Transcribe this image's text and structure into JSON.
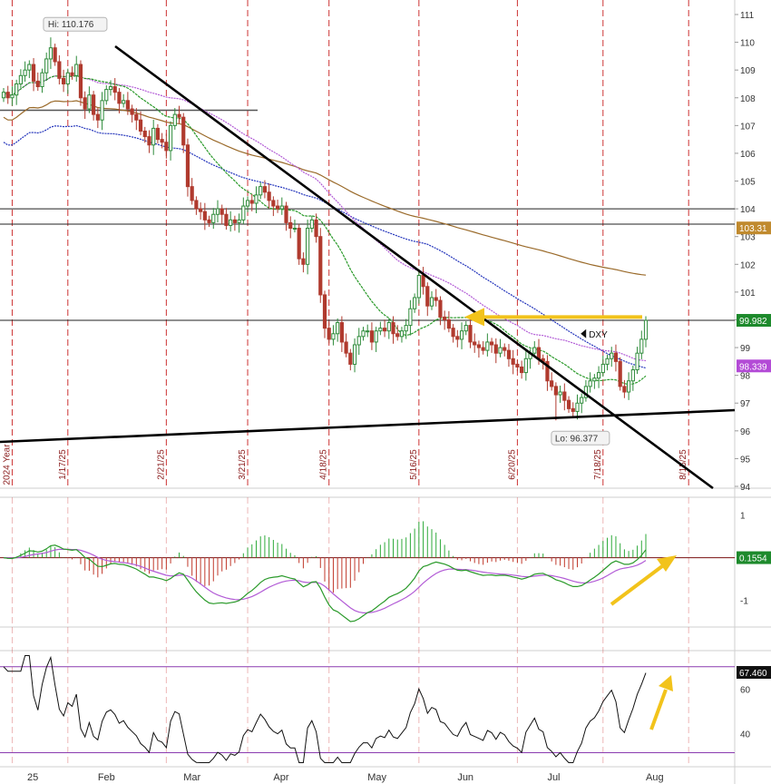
{
  "chart_data": {
    "type": "candlestick",
    "price_axis": {
      "min": 94,
      "max": 111,
      "ticks": [
        111,
        110,
        109,
        108,
        107,
        106,
        105,
        104,
        103,
        102,
        101,
        100,
        99,
        98,
        97,
        96,
        95,
        94
      ]
    },
    "month_labels": [
      {
        "label": "25",
        "day": 0
      },
      {
        "label": "Feb",
        "day": 22
      },
      {
        "label": "Mar",
        "day": 42
      },
      {
        "label": "Apr",
        "day": 63
      },
      {
        "label": "May",
        "day": 85
      },
      {
        "label": "Jun",
        "day": 106
      },
      {
        "label": "Jul",
        "day": 127
      },
      {
        "label": "Aug",
        "day": 150
      }
    ],
    "expiry_labels": [
      {
        "label": "2024 Year",
        "day": 2
      },
      {
        "label": "1/17/25",
        "day": 15
      },
      {
        "label": "2/21/25",
        "day": 38
      },
      {
        "label": "3/21/25",
        "day": 57
      },
      {
        "label": "4/18/25",
        "day": 76
      },
      {
        "label": "5/16/25",
        "day": 97
      },
      {
        "label": "6/20/25",
        "day": 120
      },
      {
        "label": "7/18/25",
        "day": 140
      },
      {
        "label": "8/15/25",
        "day": 160
      }
    ],
    "closes": [
      108.2,
      108.0,
      108.1,
      108.5,
      108.8,
      109.0,
      109.2,
      108.6,
      108.4,
      108.9,
      109.4,
      109.8,
      109.3,
      108.7,
      108.5,
      108.9,
      108.8,
      109.2,
      108.0,
      107.6,
      108.1,
      107.4,
      107.2,
      107.9,
      108.3,
      108.4,
      108.2,
      107.8,
      107.9,
      107.6,
      107.4,
      107.2,
      106.8,
      106.6,
      106.3,
      106.9,
      106.5,
      106.4,
      106.1,
      107.0,
      107.4,
      107.3,
      106.3,
      104.8,
      104.3,
      104.0,
      103.9,
      103.6,
      103.5,
      103.8,
      104.0,
      103.8,
      103.4,
      103.6,
      103.5,
      103.6,
      104.1,
      104.3,
      104.2,
      104.5,
      104.8,
      104.6,
      104.3,
      104.1,
      104.0,
      104.1,
      103.5,
      103.3,
      103.3,
      102.2,
      102.0,
      103.3,
      103.6,
      103.0,
      100.9,
      99.7,
      99.3,
      99.5,
      99.9,
      99.2,
      98.8,
      98.4,
      99.1,
      99.4,
      99.6,
      99.6,
      99.2,
      99.6,
      99.7,
      99.6,
      99.9,
      99.5,
      99.4,
      99.6,
      99.8,
      100.4,
      100.8,
      101.6,
      101.2,
      100.5,
      100.8,
      100.7,
      100.1,
      100.0,
      99.7,
      99.4,
      99.3,
      99.6,
      99.8,
      99.2,
      99.1,
      99.0,
      98.9,
      99.2,
      99.1,
      98.8,
      99.0,
      98.9,
      98.6,
      98.4,
      98.3,
      98.1,
      98.6,
      98.8,
      99.0,
      98.6,
      98.5,
      97.8,
      97.6,
      97.3,
      97.4,
      97.1,
      96.8,
      96.7,
      97.0,
      97.2,
      97.6,
      97.8,
      97.9,
      98.1,
      98.4,
      98.6,
      98.8,
      98.5,
      97.6,
      97.4,
      97.8,
      98.2,
      98.8,
      99.3,
      99.98
    ],
    "events": {
      "high": {
        "day": 11,
        "value": 110.176,
        "label": "Hi: 110.176"
      },
      "low": {
        "day": 129,
        "value": 96.377,
        "label": "Lo: 96.377"
      }
    },
    "symbol_label": "DXY",
    "price_tags": [
      {
        "label": "103.31",
        "value": 103.31,
        "color": "#c08a2e"
      },
      {
        "label": "99.982",
        "value": 99.982,
        "color": "#1d8a2c"
      },
      {
        "label": "98.339",
        "value": 98.339,
        "color": "#b34bd6"
      }
    ],
    "horizontal_lines": [
      104.0,
      103.45,
      99.982,
      107.55
    ],
    "macd_axis": {
      "min": -1.6,
      "max": 1.2,
      "ticks": [
        1,
        0,
        -1
      ],
      "value_label": "0.1554"
    },
    "rsi_axis": {
      "min": 26,
      "max": 76,
      "ticks": [
        60,
        40
      ],
      "overbought": 70,
      "oversold": 31.5,
      "value_label": "67.460"
    },
    "colors": {
      "up": "#2e8b3a",
      "down": "#b03a2e",
      "trend": "#000000",
      "arrow": "#f2c31b",
      "ma_green": "#2a9a2a",
      "ma_purple": "#b25bd6",
      "ma_blue": "#2233bb",
      "ma_brown": "#9a6a2a",
      "expiry": "#cc3333"
    }
  }
}
